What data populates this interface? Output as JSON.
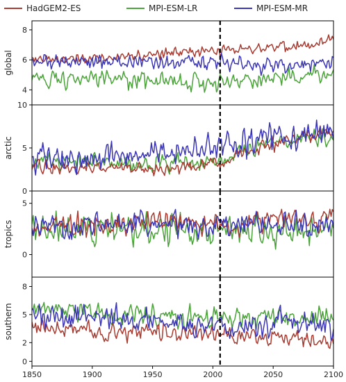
{
  "chart_data": {
    "type": "line",
    "legend": {
      "placement": "top",
      "entries": [
        "HadGEM2-ES",
        "MPI-ESM-LR",
        "MPI-ESM-MR"
      ]
    },
    "colors": {
      "HadGEM2-ES": "#a83a2f",
      "MPI-ESM-LR": "#4aa338",
      "MPI-ESM-MR": "#3a35b5",
      "divider": "#000000"
    },
    "x_range": [
      1850,
      2100
    ],
    "x_ticks": [
      1850,
      1900,
      1950,
      2000,
      2050,
      2100
    ],
    "divider_year": 2006,
    "panels": [
      {
        "ylabel": "global",
        "ylim": [
          3.0,
          8.6
        ],
        "yticks": [
          4,
          6,
          8
        ],
        "series": [
          {
            "name": "HadGEM2-ES",
            "anchors_x": [
              1850,
              1900,
              1950,
              2000,
              2050,
              2100
            ],
            "anchors_y": [
              6.0,
              6.1,
              6.4,
              6.6,
              6.8,
              7.3
            ],
            "noise": 0.45
          },
          {
            "name": "MPI-ESM-LR",
            "anchors_x": [
              1850,
              1900,
              1950,
              2000,
              2050,
              2100
            ],
            "anchors_y": [
              4.8,
              4.7,
              4.5,
              4.5,
              4.8,
              5.0
            ],
            "noise": 0.7
          },
          {
            "name": "MPI-ESM-MR",
            "anchors_x": [
              1850,
              1900,
              1950,
              2000,
              2050,
              2100
            ],
            "anchors_y": [
              6.0,
              5.8,
              5.8,
              5.8,
              5.6,
              5.8
            ],
            "noise": 0.6
          }
        ]
      },
      {
        "ylabel": "arctic",
        "ylim": [
          0,
          10
        ],
        "yticks": [
          0,
          5,
          10
        ],
        "series": [
          {
            "name": "HadGEM2-ES",
            "anchors_x": [
              1850,
              1900,
              1950,
              2000,
              2050,
              2100
            ],
            "anchors_y": [
              3.0,
              2.7,
              2.5,
              3.2,
              5.5,
              7.0
            ],
            "noise": 0.9
          },
          {
            "name": "MPI-ESM-LR",
            "anchors_x": [
              1850,
              1900,
              1950,
              2000,
              2050,
              2100
            ],
            "anchors_y": [
              3.5,
              3.3,
              3.0,
              3.5,
              5.5,
              6.5
            ],
            "noise": 1.2
          },
          {
            "name": "MPI-ESM-MR",
            "anchors_x": [
              1850,
              1900,
              1950,
              2000,
              2050,
              2100
            ],
            "anchors_y": [
              4.0,
              3.8,
              4.3,
              5.2,
              6.0,
              6.5
            ],
            "noise": 1.8
          }
        ]
      },
      {
        "ylabel": "tropics",
        "ylim": [
          -2.2,
          6.2
        ],
        "yticks": [
          0,
          5
        ],
        "series": [
          {
            "name": "HadGEM2-ES",
            "anchors_x": [
              1850,
              1900,
              1950,
              2000,
              2050,
              2100
            ],
            "anchors_y": [
              2.5,
              3.0,
              3.2,
              3.0,
              3.2,
              3.5
            ],
            "noise": 1.3
          },
          {
            "name": "MPI-ESM-LR",
            "anchors_x": [
              1850,
              1900,
              1950,
              2000,
              2050,
              2100
            ],
            "anchors_y": [
              2.5,
              2.5,
              2.5,
              2.5,
              2.5,
              2.5
            ],
            "noise": 1.7
          },
          {
            "name": "MPI-ESM-MR",
            "anchors_x": [
              1850,
              1900,
              1950,
              2000,
              2050,
              2100
            ],
            "anchors_y": [
              2.8,
              2.8,
              2.8,
              2.8,
              2.8,
              2.8
            ],
            "noise": 1.4
          }
        ]
      },
      {
        "ylabel": "southern",
        "ylim": [
          -0.5,
          9.0
        ],
        "yticks": [
          0,
          2,
          5,
          8
        ],
        "series": [
          {
            "name": "HadGEM2-ES",
            "anchors_x": [
              1850,
              1900,
              1950,
              2000,
              2050,
              2100
            ],
            "anchors_y": [
              3.5,
              3.3,
              3.0,
              3.0,
              2.5,
              2.3
            ],
            "noise": 1.1
          },
          {
            "name": "MPI-ESM-LR",
            "anchors_x": [
              1850,
              1900,
              1950,
              2000,
              2050,
              2100
            ],
            "anchors_y": [
              5.5,
              5.2,
              5.0,
              4.8,
              4.7,
              4.5
            ],
            "noise": 1.3
          },
          {
            "name": "MPI-ESM-MR",
            "anchors_x": [
              1850,
              1900,
              1950,
              2000,
              2050,
              2100
            ],
            "anchors_y": [
              4.8,
              4.5,
              4.3,
              4.0,
              4.0,
              4.0
            ],
            "noise": 1.6
          }
        ]
      }
    ]
  }
}
